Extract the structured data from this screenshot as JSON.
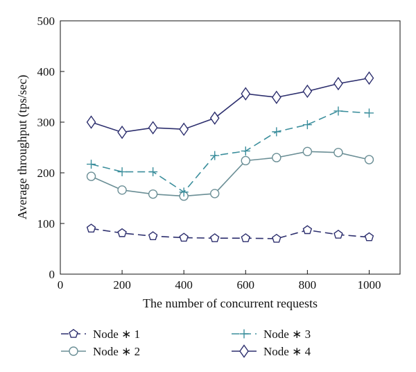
{
  "chart_data": {
    "type": "line",
    "xlabel": "The number of concurrent requests",
    "ylabel": "Average throughput (tps/sec)",
    "xlim": [
      0,
      1100
    ],
    "ylim": [
      0,
      500
    ],
    "xticks": [
      0,
      200,
      400,
      600,
      800,
      1000
    ],
    "yticks": [
      0,
      100,
      200,
      300,
      400,
      500
    ],
    "grid": false,
    "legend_position": "bottom",
    "x": [
      100,
      200,
      300,
      400,
      500,
      600,
      700,
      800,
      900,
      1000
    ],
    "series": [
      {
        "name": "Node ∗ 1",
        "values": [
          90,
          81,
          75,
          72,
          71,
          71,
          70,
          87,
          78,
          73
        ],
        "color": "#2d2f6e",
        "line_style": "dashed",
        "marker": "pentagon"
      },
      {
        "name": "Node ∗ 2",
        "values": [
          193,
          166,
          158,
          154,
          159,
          224,
          230,
          242,
          240,
          226
        ],
        "color": "#6a8e95",
        "line_style": "solid",
        "marker": "circle"
      },
      {
        "name": "Node ∗ 3",
        "values": [
          217,
          202,
          202,
          162,
          234,
          243,
          281,
          295,
          322,
          318
        ],
        "color": "#3b8e9c",
        "line_style": "dashed",
        "marker": "plus"
      },
      {
        "name": "Node ∗ 4",
        "values": [
          300,
          280,
          289,
          286,
          308,
          356,
          349,
          361,
          376,
          387
        ],
        "color": "#2d2f6e",
        "line_style": "solid",
        "marker": "diamond"
      }
    ]
  }
}
